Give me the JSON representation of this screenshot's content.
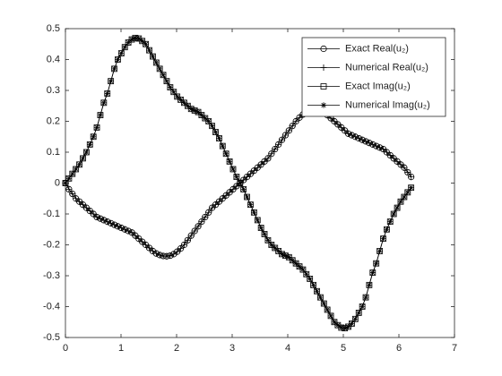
{
  "chart_data": {
    "type": "line",
    "x": [
      0,
      0.063,
      0.126,
      0.188,
      0.251,
      0.314,
      0.377,
      0.44,
      0.503,
      0.565,
      0.628,
      0.691,
      0.754,
      0.817,
      0.88,
      0.942,
      1.005,
      1.068,
      1.131,
      1.194,
      1.257,
      1.319,
      1.382,
      1.445,
      1.508,
      1.571,
      1.634,
      1.696,
      1.759,
      1.822,
      1.885,
      1.948,
      2.011,
      2.073,
      2.136,
      2.199,
      2.262,
      2.325,
      2.388,
      2.45,
      2.513,
      2.576,
      2.639,
      2.702,
      2.765,
      2.827,
      2.89,
      2.953,
      3.016,
      3.079,
      3.142,
      3.204,
      3.267,
      3.33,
      3.393,
      3.456,
      3.519,
      3.581,
      3.644,
      3.707,
      3.77,
      3.833,
      3.896,
      3.958,
      4.021,
      4.084,
      4.147,
      4.21,
      4.273,
      4.335,
      4.398,
      4.461,
      4.524,
      4.587,
      4.65,
      4.712,
      4.775,
      4.838,
      4.901,
      4.964,
      5.027,
      5.089,
      5.152,
      5.215,
      5.278,
      5.341,
      5.404,
      5.466,
      5.529,
      5.592,
      5.655,
      5.718,
      5.781,
      5.843,
      5.906,
      5.969,
      6.032,
      6.095,
      6.158,
      6.22
    ],
    "series": [
      {
        "name": "Exact Real(u₂)",
        "color": "#000000",
        "marker": "o",
        "values": [
          0,
          -0.02,
          -0.035,
          -0.05,
          -0.06,
          -0.07,
          -0.08,
          -0.09,
          -0.1,
          -0.11,
          -0.115,
          -0.12,
          -0.125,
          -0.13,
          -0.135,
          -0.14,
          -0.145,
          -0.15,
          -0.155,
          -0.16,
          -0.17,
          -0.18,
          -0.19,
          -0.2,
          -0.21,
          -0.22,
          -0.228,
          -0.233,
          -0.236,
          -0.237,
          -0.235,
          -0.23,
          -0.222,
          -0.212,
          -0.2,
          -0.185,
          -0.17,
          -0.155,
          -0.14,
          -0.125,
          -0.11,
          -0.095,
          -0.08,
          -0.07,
          -0.06,
          -0.05,
          -0.04,
          -0.03,
          -0.02,
          -0.01,
          0,
          0.01,
          0.02,
          0.03,
          0.04,
          0.05,
          0.06,
          0.07,
          0.08,
          0.095,
          0.11,
          0.125,
          0.14,
          0.155,
          0.17,
          0.185,
          0.2,
          0.212,
          0.222,
          0.23,
          0.235,
          0.237,
          0.236,
          0.233,
          0.228,
          0.22,
          0.21,
          0.2,
          0.19,
          0.18,
          0.17,
          0.16,
          0.155,
          0.15,
          0.145,
          0.14,
          0.135,
          0.13,
          0.125,
          0.12,
          0.115,
          0.11,
          0.1,
          0.09,
          0.08,
          0.07,
          0.06,
          0.05,
          0.035,
          0.02
        ]
      },
      {
        "name": "Numerical Real(u₂)",
        "color": "#000000",
        "marker": "+",
        "values": [
          0,
          -0.02,
          -0.035,
          -0.05,
          -0.06,
          -0.07,
          -0.08,
          -0.09,
          -0.1,
          -0.11,
          -0.115,
          -0.12,
          -0.125,
          -0.13,
          -0.135,
          -0.14,
          -0.145,
          -0.15,
          -0.155,
          -0.16,
          -0.17,
          -0.18,
          -0.19,
          -0.2,
          -0.21,
          -0.22,
          -0.228,
          -0.233,
          -0.236,
          -0.237,
          -0.235,
          -0.23,
          -0.222,
          -0.212,
          -0.2,
          -0.185,
          -0.17,
          -0.155,
          -0.14,
          -0.125,
          -0.11,
          -0.095,
          -0.08,
          -0.07,
          -0.06,
          -0.05,
          -0.04,
          -0.03,
          -0.02,
          -0.01,
          0,
          0.01,
          0.02,
          0.03,
          0.04,
          0.05,
          0.06,
          0.07,
          0.08,
          0.095,
          0.11,
          0.125,
          0.14,
          0.155,
          0.17,
          0.185,
          0.2,
          0.212,
          0.222,
          0.23,
          0.235,
          0.237,
          0.236,
          0.233,
          0.228,
          0.22,
          0.21,
          0.2,
          0.19,
          0.18,
          0.17,
          0.16,
          0.155,
          0.15,
          0.145,
          0.14,
          0.135,
          0.13,
          0.125,
          0.12,
          0.115,
          0.11,
          0.1,
          0.09,
          0.08,
          0.07,
          0.06,
          0.05,
          0.035,
          0.02
        ]
      },
      {
        "name": "Exact Imag(u₂)",
        "color": "#000000",
        "marker": "s",
        "values": [
          0,
          0.015,
          0.03,
          0.045,
          0.06,
          0.08,
          0.1,
          0.125,
          0.15,
          0.18,
          0.22,
          0.26,
          0.29,
          0.33,
          0.37,
          0.4,
          0.42,
          0.44,
          0.455,
          0.465,
          0.47,
          0.468,
          0.46,
          0.45,
          0.43,
          0.41,
          0.39,
          0.37,
          0.35,
          0.33,
          0.31,
          0.295,
          0.28,
          0.27,
          0.26,
          0.25,
          0.24,
          0.235,
          0.23,
          0.22,
          0.21,
          0.2,
          0.185,
          0.165,
          0.145,
          0.12,
          0.095,
          0.07,
          0.045,
          0.02,
          0,
          -0.02,
          -0.045,
          -0.07,
          -0.095,
          -0.12,
          -0.145,
          -0.165,
          -0.185,
          -0.2,
          -0.21,
          -0.22,
          -0.23,
          -0.235,
          -0.24,
          -0.25,
          -0.26,
          -0.27,
          -0.28,
          -0.295,
          -0.31,
          -0.33,
          -0.35,
          -0.37,
          -0.39,
          -0.41,
          -0.43,
          -0.45,
          -0.46,
          -0.468,
          -0.47,
          -0.465,
          -0.455,
          -0.44,
          -0.42,
          -0.4,
          -0.37,
          -0.33,
          -0.29,
          -0.26,
          -0.22,
          -0.18,
          -0.15,
          -0.125,
          -0.1,
          -0.08,
          -0.06,
          -0.045,
          -0.03,
          -0.015
        ]
      },
      {
        "name": "Numerical Imag(u₂)",
        "color": "#000000",
        "marker": "*",
        "values": [
          0,
          0.015,
          0.03,
          0.045,
          0.06,
          0.08,
          0.1,
          0.125,
          0.15,
          0.18,
          0.22,
          0.26,
          0.29,
          0.33,
          0.37,
          0.4,
          0.42,
          0.44,
          0.455,
          0.465,
          0.47,
          0.468,
          0.46,
          0.45,
          0.43,
          0.41,
          0.39,
          0.37,
          0.35,
          0.33,
          0.31,
          0.295,
          0.28,
          0.27,
          0.26,
          0.25,
          0.24,
          0.235,
          0.23,
          0.22,
          0.21,
          0.2,
          0.185,
          0.165,
          0.145,
          0.12,
          0.095,
          0.07,
          0.045,
          0.02,
          0,
          -0.02,
          -0.045,
          -0.07,
          -0.095,
          -0.12,
          -0.145,
          -0.165,
          -0.185,
          -0.2,
          -0.21,
          -0.22,
          -0.23,
          -0.235,
          -0.24,
          -0.25,
          -0.26,
          -0.27,
          -0.28,
          -0.295,
          -0.31,
          -0.33,
          -0.35,
          -0.37,
          -0.39,
          -0.41,
          -0.43,
          -0.45,
          -0.46,
          -0.468,
          -0.47,
          -0.465,
          -0.455,
          -0.44,
          -0.42,
          -0.4,
          -0.37,
          -0.33,
          -0.29,
          -0.26,
          -0.22,
          -0.18,
          -0.15,
          -0.125,
          -0.1,
          -0.08,
          -0.06,
          -0.045,
          -0.03,
          -0.015
        ]
      }
    ],
    "xlim": [
      0,
      7
    ],
    "xticks": [
      0,
      1,
      2,
      3,
      4,
      5,
      6,
      7
    ],
    "ylim": [
      -0.5,
      0.5
    ],
    "yticks": [
      -0.5,
      -0.4,
      -0.3,
      -0.2,
      -0.1,
      0,
      0.1,
      0.2,
      0.3,
      0.4,
      0.5
    ],
    "grid": false,
    "legend": "top-right"
  }
}
